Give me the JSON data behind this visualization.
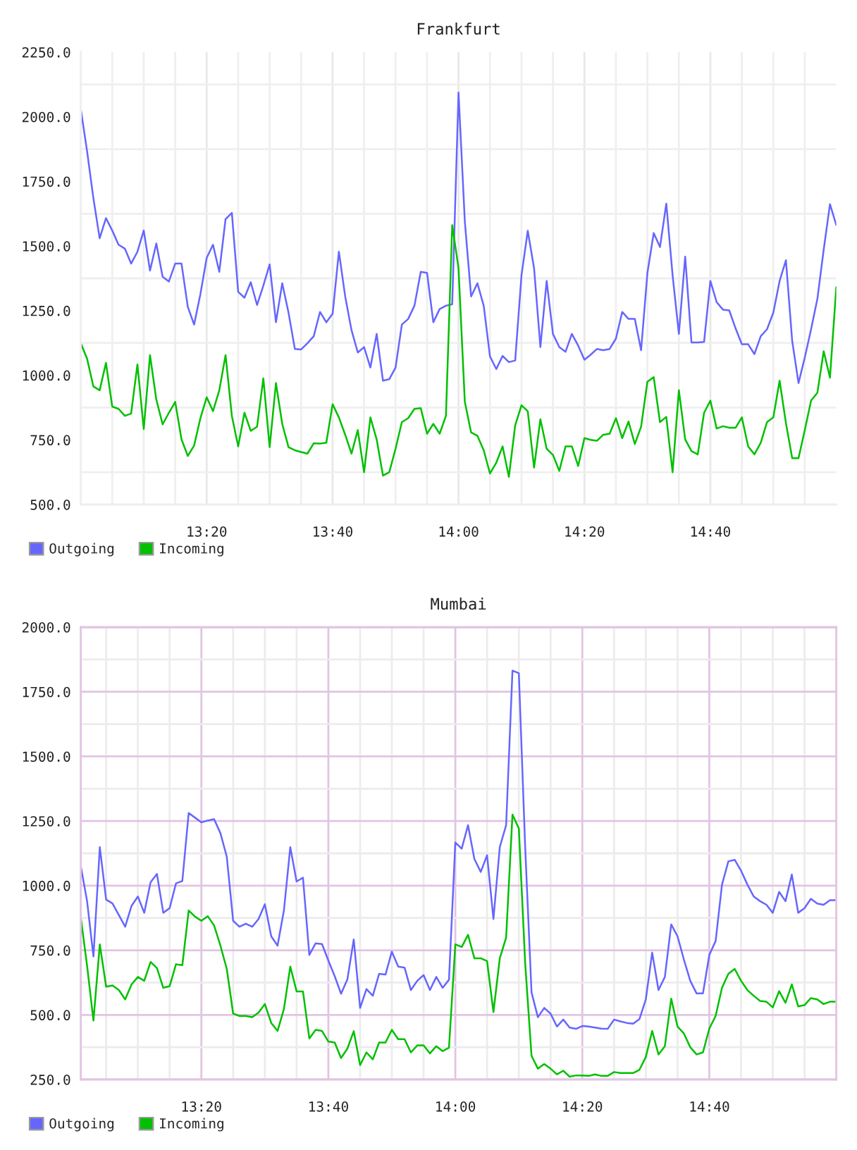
{
  "chart_data": [
    {
      "type": "line",
      "title": "Frankfurt",
      "x": [
        13,
        13.0167,
        13.0333,
        13.05,
        13.0667,
        13.0833,
        13.1,
        13.1167,
        13.1333,
        13.15,
        13.1667,
        13.1833,
        13.2,
        13.2167,
        13.2333,
        13.25,
        13.2667,
        13.2833,
        13.3,
        13.3167,
        13.3333,
        13.35,
        13.3667,
        13.3833,
        13.4,
        13.4167,
        13.4333,
        13.45,
        13.4667,
        13.4833,
        13.5,
        13.5167,
        13.5333,
        13.55,
        13.5667,
        13.5833,
        13.6,
        13.6167,
        13.6333,
        13.65,
        13.6667,
        13.6833,
        13.7,
        13.7167,
        13.7333,
        13.75,
        13.7667,
        13.7833,
        13.8,
        13.8167,
        13.8333,
        13.85,
        13.8667,
        13.8833,
        13.9,
        13.9167,
        13.9333,
        13.95,
        13.9667,
        13.9833,
        14,
        14.0167,
        14.0333,
        14.05,
        14.0667,
        14.0833,
        14.1,
        14.1167,
        14.1333,
        14.15,
        14.1667,
        14.1833,
        14.2,
        14.2167,
        14.2333,
        14.25,
        14.2667,
        14.2833,
        14.3,
        14.3167,
        14.3333,
        14.35,
        14.3667,
        14.3833,
        14.4,
        14.4167,
        14.4333,
        14.45,
        14.4667,
        14.4833,
        14.5,
        14.5167,
        14.5333,
        14.55,
        14.5667,
        14.5833,
        14.6,
        14.6167,
        14.6333,
        14.65,
        14.6667,
        14.6833,
        14.7,
        14.7167,
        14.7333,
        14.75,
        14.7667,
        14.7833,
        14.8,
        14.8167,
        14.8333,
        14.85,
        14.8667,
        14.8833,
        14.9,
        14.9167,
        14.9333,
        14.95,
        14.9667,
        14.9833,
        15
      ],
      "xlim": [
        13,
        15
      ],
      "xticks": [
        {
          "value": 13.0833,
          "label": null
        },
        {
          "value": 13.1667,
          "label": null
        },
        {
          "value": 13.25,
          "label": null
        },
        {
          "value": 13.3333,
          "label": "13:20"
        },
        {
          "value": 13.4167,
          "label": null
        },
        {
          "value": 13.5,
          "label": null
        },
        {
          "value": 13.5833,
          "label": null
        },
        {
          "value": 13.6667,
          "label": "13:40"
        },
        {
          "value": 13.75,
          "label": null
        },
        {
          "value": 13.8333,
          "label": null
        },
        {
          "value": 13.9167,
          "label": null
        },
        {
          "value": 14,
          "label": "14:00"
        },
        {
          "value": 14.0833,
          "label": null
        },
        {
          "value": 14.1667,
          "label": null
        },
        {
          "value": 14.25,
          "label": null
        },
        {
          "value": 14.3333,
          "label": "14:20"
        },
        {
          "value": 14.4167,
          "label": null
        },
        {
          "value": 14.5,
          "label": null
        },
        {
          "value": 14.5833,
          "label": null
        },
        {
          "value": 14.6667,
          "label": "14:40"
        },
        {
          "value": 14.75,
          "label": null
        },
        {
          "value": 14.8333,
          "label": null
        },
        {
          "value": 14.9167,
          "label": null
        }
      ],
      "ylim": [
        500,
        2250
      ],
      "yticks": [
        {
          "value": 500,
          "label": "500.0"
        },
        {
          "value": 625,
          "label": null
        },
        {
          "value": 750,
          "label": "750.0"
        },
        {
          "value": 875,
          "label": null
        },
        {
          "value": 1000,
          "label": "1000.0"
        },
        {
          "value": 1125,
          "label": null
        },
        {
          "value": 1250,
          "label": "1250.0"
        },
        {
          "value": 1375,
          "label": null
        },
        {
          "value": 1500,
          "label": "1500.0"
        },
        {
          "value": 1625,
          "label": null
        },
        {
          "value": 1750,
          "label": "1750.0"
        },
        {
          "value": 1875,
          "label": null
        },
        {
          "value": 2000,
          "label": "2000.0"
        },
        {
          "value": 2125,
          "label": null
        },
        {
          "value": 2250,
          "label": "2250.0"
        }
      ],
      "grid": true,
      "legend": "bottom left",
      "series": [
        {
          "name": "Outgoing",
          "color": "#6666ff",
          "values": [
            2030,
            1867,
            1686,
            1530,
            1608,
            1560,
            1505,
            1490,
            1432,
            1478,
            1560,
            1405,
            1510,
            1381,
            1363,
            1432,
            1432,
            1265,
            1196,
            1314,
            1454,
            1505,
            1400,
            1604,
            1628,
            1323,
            1300,
            1360,
            1272,
            1347,
            1429,
            1205,
            1356,
            1242,
            1102,
            1100,
            1124,
            1151,
            1245,
            1205,
            1238,
            1478,
            1305,
            1175,
            1088,
            1109,
            1030,
            1160,
            979,
            985,
            1030,
            1196,
            1218,
            1269,
            1400,
            1396,
            1205,
            1256,
            1269,
            1275,
            2094,
            1595,
            1305,
            1356,
            1269,
            1073,
            1024,
            1075,
            1051,
            1057,
            1387,
            1559,
            1414,
            1109,
            1365,
            1160,
            1109,
            1091,
            1160,
            1115,
            1060,
            1080,
            1102,
            1097,
            1102,
            1142,
            1245,
            1218,
            1218,
            1097,
            1396,
            1550,
            1496,
            1664,
            1387,
            1160,
            1459,
            1127,
            1127,
            1129,
            1365,
            1283,
            1254,
            1251,
            1182,
            1120,
            1120,
            1082,
            1151,
            1178,
            1242,
            1365,
            1445,
            1133,
            970,
            1069,
            1178,
            1296,
            1486,
            1662,
            1581
          ]
        },
        {
          "name": "Incoming",
          "color": "#00c000",
          "values": [
            1124,
            1064,
            957,
            942,
            1048,
            879,
            870,
            843,
            852,
            1042,
            792,
            1078,
            906,
            810,
            855,
            897,
            752,
            688,
            728,
            834,
            915,
            861,
            942,
            1078,
            843,
            725,
            855,
            785,
            801,
            988,
            722,
            970,
            812,
            722,
            710,
            703,
            697,
            737,
            736,
            739,
            888,
            837,
            770,
            697,
            788,
            625,
            837,
            752,
            612,
            625,
            716,
            819,
            834,
            870,
            873,
            774,
            812,
            774,
            843,
            1581,
            1414,
            897,
            779,
            766,
            710,
            620,
            662,
            725,
            607,
            806,
            884,
            861,
            643,
            830,
            716,
            692,
            630,
            725,
            725,
            649,
            757,
            750,
            747,
            770,
            774,
            834,
            757,
            821,
            734,
            801,
            975,
            993,
            819,
            839,
            625,
            942,
            752,
            707,
            694,
            855,
            902,
            794,
            803,
            797,
            797,
            837,
            725,
            694,
            739,
            819,
            837,
            979,
            815,
            679,
            679,
            788,
            902,
            933,
            1093,
            991,
            1341
          ]
        }
      ]
    },
    {
      "type": "line",
      "title": "Mumbai",
      "x": [
        13.0167,
        13.0333,
        13.05,
        13.0667,
        13.0833,
        13.1,
        13.1167,
        13.1333,
        13.15,
        13.1667,
        13.1833,
        13.2,
        13.2167,
        13.2333,
        13.25,
        13.2667,
        13.2833,
        13.3,
        13.3167,
        13.3333,
        13.35,
        13.3667,
        13.3833,
        13.4,
        13.4167,
        13.4333,
        13.45,
        13.4667,
        13.4833,
        13.5,
        13.5167,
        13.5333,
        13.55,
        13.5667,
        13.5833,
        13.6,
        13.6167,
        13.6333,
        13.65,
        13.6667,
        13.6833,
        13.7,
        13.7167,
        13.7333,
        13.75,
        13.7667,
        13.7833,
        13.8,
        13.8167,
        13.8333,
        13.85,
        13.8667,
        13.8833,
        13.9,
        13.9167,
        13.9333,
        13.95,
        13.9667,
        13.9833,
        14,
        14.0167,
        14.0333,
        14.05,
        14.0667,
        14.0833,
        14.1,
        14.1167,
        14.1333,
        14.15,
        14.1667,
        14.1833,
        14.2,
        14.2167,
        14.2333,
        14.25,
        14.2667,
        14.2833,
        14.3,
        14.3167,
        14.3333,
        14.35,
        14.3667,
        14.3833,
        14.4,
        14.4167,
        14.4333,
        14.45,
        14.4667,
        14.4833,
        14.5,
        14.5167,
        14.5333,
        14.55,
        14.5667,
        14.5833,
        14.6,
        14.6167,
        14.6333,
        14.65,
        14.6667,
        14.6833,
        14.7,
        14.7167,
        14.7333,
        14.75,
        14.7667,
        14.7833,
        14.8,
        14.8167,
        14.8333,
        14.85,
        14.8667,
        14.8833,
        14.9,
        14.9167,
        14.9333,
        14.95,
        14.9667,
        14.9833,
        15
      ],
      "xlim": [
        13.0167,
        15
      ],
      "xticks": [
        {
          "value": 13.0833,
          "label": null
        },
        {
          "value": 13.1667,
          "label": null
        },
        {
          "value": 13.25,
          "label": null
        },
        {
          "value": 13.3333,
          "label": "13:20"
        },
        {
          "value": 13.4167,
          "label": null
        },
        {
          "value": 13.5,
          "label": null
        },
        {
          "value": 13.5833,
          "label": null
        },
        {
          "value": 13.6667,
          "label": "13:40"
        },
        {
          "value": 13.75,
          "label": null
        },
        {
          "value": 13.8333,
          "label": null
        },
        {
          "value": 13.9167,
          "label": null
        },
        {
          "value": 14,
          "label": "14:00"
        },
        {
          "value": 14.0833,
          "label": null
        },
        {
          "value": 14.1667,
          "label": null
        },
        {
          "value": 14.25,
          "label": null
        },
        {
          "value": 14.3333,
          "label": "14:20"
        },
        {
          "value": 14.4167,
          "label": null
        },
        {
          "value": 14.5,
          "label": null
        },
        {
          "value": 14.5833,
          "label": null
        },
        {
          "value": 14.6667,
          "label": "14:40"
        },
        {
          "value": 14.75,
          "label": null
        },
        {
          "value": 14.8333,
          "label": null
        },
        {
          "value": 14.9167,
          "label": null
        }
      ],
      "ylim": [
        250,
        2000
      ],
      "yticks": [
        {
          "value": 250,
          "label": "250.0"
        },
        {
          "value": 375,
          "label": null
        },
        {
          "value": 500,
          "label": "500.0"
        },
        {
          "value": 625,
          "label": null
        },
        {
          "value": 750,
          "label": "750.0"
        },
        {
          "value": 875,
          "label": null
        },
        {
          "value": 1000,
          "label": "1000.0"
        },
        {
          "value": 1125,
          "label": null
        },
        {
          "value": 1250,
          "label": "1250.0"
        },
        {
          "value": 1375,
          "label": null
        },
        {
          "value": 1500,
          "label": "1500.0"
        },
        {
          "value": 1625,
          "label": null
        },
        {
          "value": 1750,
          "label": "1750.0"
        },
        {
          "value": 1875,
          "label": null
        },
        {
          "value": 2000,
          "label": "2000.0"
        }
      ],
      "grid": true,
      "legend": "bottom left",
      "series": [
        {
          "name": "Outgoing",
          "color": "#6666ff",
          "values": [
            1076,
            940,
            726,
            1149,
            946,
            931,
            886,
            841,
            922,
            958,
            895,
            1013,
            1045,
            895,
            913,
            1009,
            1018,
            1281,
            1263,
            1245,
            1252,
            1257,
            1203,
            1112,
            864,
            841,
            853,
            841,
            871,
            928,
            804,
            768,
            904,
            1149,
            1016,
            1031,
            732,
            777,
            774,
            710,
            650,
            582,
            638,
            792,
            527,
            600,
            574,
            659,
            656,
            745,
            687,
            683,
            596,
            632,
            654,
            596,
            647,
            605,
            636,
            1167,
            1143,
            1234,
            1103,
            1053,
            1118,
            871,
            1149,
            1234,
            1832,
            1822,
            1150,
            587,
            491,
            527,
            505,
            455,
            482,
            451,
            446,
            457,
            455,
            451,
            447,
            446,
            482,
            475,
            469,
            466,
            484,
            560,
            741,
            596,
            647,
            850,
            804,
            714,
            632,
            583,
            583,
            732,
            786,
            1004,
            1094,
            1100,
            1058,
            1004,
            958,
            940,
            926,
            895,
            976,
            940,
            1043,
            895,
            913,
            949,
            931,
            926,
            944,
            944
          ]
        },
        {
          "name": "Incoming",
          "color": "#00c000",
          "values": [
            877,
            690,
            478,
            773,
            609,
            614,
            596,
            560,
            618,
            647,
            632,
            705,
            681,
            605,
            611,
            696,
            692,
            904,
            880,
            864,
            882,
            846,
            768,
            678,
            505,
            496,
            496,
            491,
            509,
            542,
            469,
            438,
            523,
            687,
            591,
            591,
            409,
            442,
            438,
            397,
            393,
            333,
            370,
            437,
            306,
            355,
            328,
            393,
            393,
            442,
            406,
            406,
            355,
            382,
            382,
            351,
            379,
            360,
            373,
            773,
            763,
            810,
            719,
            719,
            708,
            511,
            719,
            799,
            1275,
            1221,
            700,
            342,
            292,
            310,
            292,
            270,
            284,
            261,
            266,
            266,
            264,
            270,
            264,
            264,
            279,
            275,
            275,
            275,
            288,
            337,
            438,
            347,
            379,
            563,
            455,
            428,
            375,
            347,
            355,
            447,
            496,
            605,
            659,
            678,
            632,
            596,
            574,
            554,
            551,
            529,
            592,
            547,
            618,
            533,
            538,
            565,
            560,
            542,
            551,
            551
          ]
        }
      ]
    }
  ]
}
